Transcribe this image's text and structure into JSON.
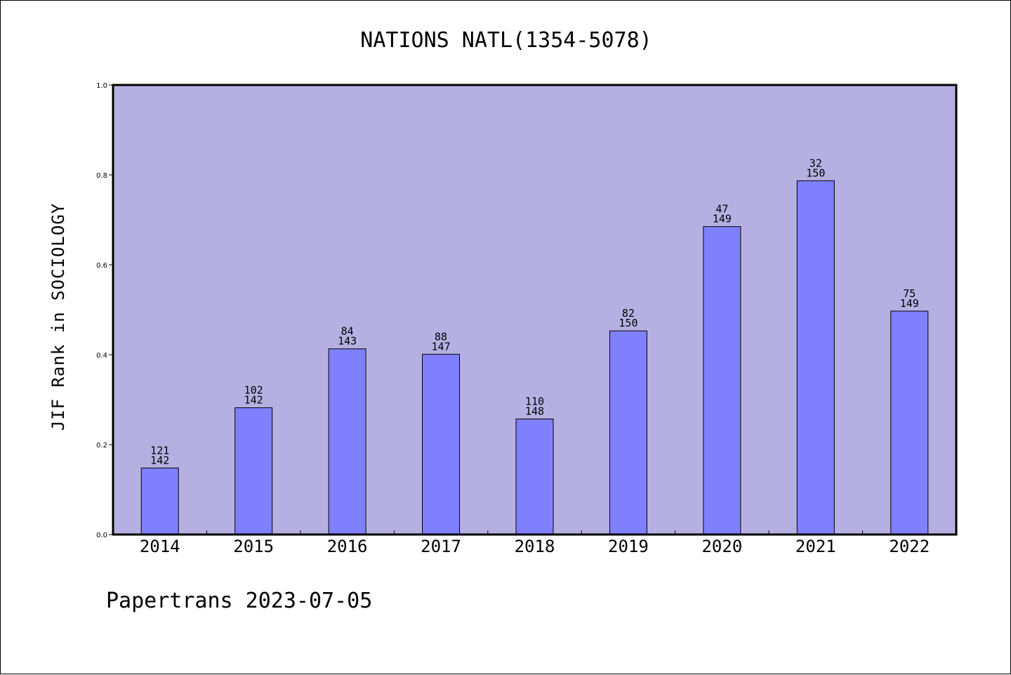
{
  "chart_data": {
    "type": "bar",
    "title": "NATIONS NATL(1354-5078)",
    "ylabel": "JIF Rank in SOCIOLOGY",
    "xlabel": "",
    "ylim": [
      0,
      1.0
    ],
    "yticks": [
      "0.0",
      "0.2",
      "0.4",
      "0.6",
      "0.8",
      "1.0"
    ],
    "categories": [
      "2014",
      "2015",
      "2016",
      "2017",
      "2018",
      "2019",
      "2020",
      "2021",
      "2022"
    ],
    "values": [
      0.148,
      0.282,
      0.413,
      0.401,
      0.257,
      0.453,
      0.685,
      0.787,
      0.497
    ],
    "rank": [
      "121",
      "102",
      "84",
      "88",
      "110",
      "82",
      "47",
      "32",
      "75"
    ],
    "total": [
      "142",
      "142",
      "143",
      "147",
      "148",
      "150",
      "149",
      "150",
      "149"
    ],
    "grid": false,
    "colors": {
      "plot_background": "#b6b0e2",
      "bar_fill": "#8080ff",
      "bar_edge": "#000000"
    }
  },
  "footer": "Papertrans 2023-07-05"
}
